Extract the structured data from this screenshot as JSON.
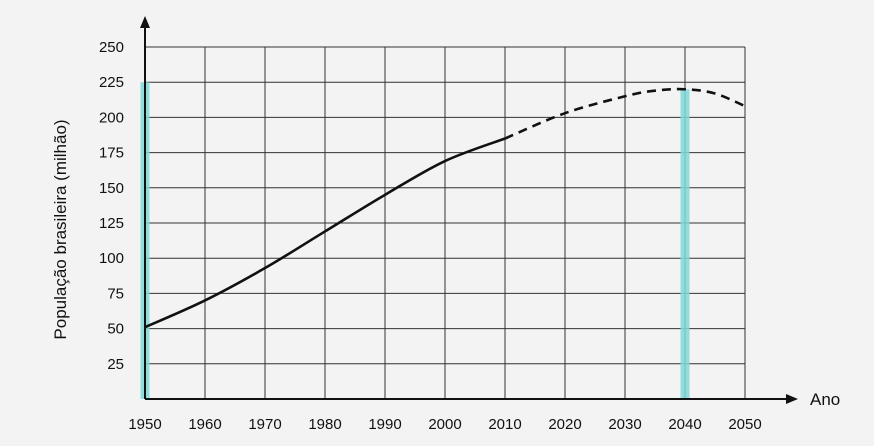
{
  "chart_data": {
    "type": "line",
    "xlabel": "Ano",
    "ylabel": "População brasileira (milhão)",
    "x_ticks": [
      1950,
      1960,
      1970,
      1980,
      1990,
      2000,
      2010,
      2020,
      2030,
      2040,
      2050
    ],
    "y_ticks": [
      25,
      50,
      75,
      100,
      125,
      150,
      175,
      200,
      225,
      250
    ],
    "xlim": [
      1950,
      2050
    ],
    "ylim": [
      0,
      250
    ],
    "grid": true,
    "series": [
      {
        "style": "solid",
        "color": "#111111",
        "points": [
          [
            1950,
            51
          ],
          [
            1960,
            70
          ],
          [
            1970,
            93
          ],
          [
            1980,
            119
          ],
          [
            1990,
            145
          ],
          [
            2000,
            169
          ],
          [
            2010,
            185
          ]
        ]
      },
      {
        "style": "dashed",
        "color": "#111111",
        "points": [
          [
            2010,
            185
          ],
          [
            2020,
            203
          ],
          [
            2030,
            215
          ],
          [
            2035,
            219
          ],
          [
            2040,
            220
          ],
          [
            2045,
            217
          ],
          [
            2050,
            208
          ]
        ]
      }
    ],
    "highlights": [
      {
        "x": 1950,
        "y_top": 225,
        "color": "#7fd8d8"
      },
      {
        "x": 2040,
        "y_top": 220,
        "color": "#7fd8d8"
      }
    ]
  }
}
